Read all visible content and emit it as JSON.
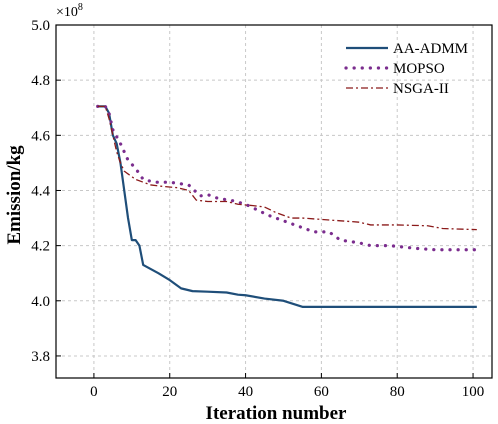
{
  "chart_data": {
    "type": "line",
    "xlabel": "Iteration number",
    "ylabel": "Emission/kg",
    "y_multiplier_base": "×10",
    "y_multiplier_exp": "8",
    "xlim": [
      -10,
      105
    ],
    "ylim": [
      3.72,
      5.0
    ],
    "xticks": [
      0,
      20,
      40,
      60,
      80,
      100
    ],
    "yticks": [
      3.8,
      4.0,
      4.2,
      4.4,
      4.6,
      4.8,
      5.0
    ],
    "ytick_labels": [
      "3.8",
      "4.0",
      "4.2",
      "4.4",
      "4.6",
      "4.8",
      "5.0"
    ],
    "grid": true,
    "legend_position": "top-right",
    "series": [
      {
        "name": "AA-ADMM",
        "color": "#1f4e79",
        "style": "solid",
        "x": [
          1,
          3,
          4,
          5,
          6,
          7,
          8,
          9,
          10,
          11,
          12,
          13,
          15,
          17,
          20,
          23,
          26,
          30,
          35,
          38,
          40,
          45,
          50,
          55,
          60,
          70,
          80,
          90,
          101
        ],
        "y": [
          4.705,
          4.705,
          4.68,
          4.6,
          4.57,
          4.5,
          4.4,
          4.3,
          4.22,
          4.22,
          4.2,
          4.13,
          4.115,
          4.1,
          4.075,
          4.045,
          4.035,
          4.033,
          4.03,
          4.022,
          4.02,
          4.008,
          4.0,
          3.978,
          3.978,
          3.978,
          3.978,
          3.978,
          3.978
        ]
      },
      {
        "name": "MOPSO",
        "color": "#7b2d8e",
        "style": "dotted",
        "x": [
          1,
          3,
          4,
          5,
          7,
          9,
          11,
          13,
          16,
          20,
          25,
          28,
          30,
          33,
          36,
          40,
          43,
          46,
          50,
          53,
          56,
          58,
          62,
          65,
          70,
          73,
          78,
          85,
          90,
          95,
          101
        ],
        "y": [
          4.705,
          4.705,
          4.68,
          4.62,
          4.57,
          4.51,
          4.48,
          4.44,
          4.43,
          4.43,
          4.42,
          4.38,
          4.385,
          4.37,
          4.365,
          4.35,
          4.33,
          4.31,
          4.29,
          4.275,
          4.26,
          4.25,
          4.25,
          4.22,
          4.21,
          4.2,
          4.2,
          4.19,
          4.185,
          4.185,
          4.185
        ]
      },
      {
        "name": "NSGA-II",
        "color": "#8b1a1a",
        "style": "dashdot",
        "x": [
          1,
          3,
          4,
          5,
          6,
          7,
          8,
          9,
          11,
          13,
          15,
          18,
          22,
          25,
          27,
          30,
          35,
          38,
          42,
          45,
          48,
          52,
          55,
          60,
          65,
          70,
          73,
          80,
          88,
          92,
          101
        ],
        "y": [
          4.705,
          4.705,
          4.66,
          4.6,
          4.54,
          4.5,
          4.47,
          4.46,
          4.44,
          4.43,
          4.42,
          4.415,
          4.41,
          4.4,
          4.365,
          4.36,
          4.36,
          4.35,
          4.345,
          4.34,
          4.32,
          4.3,
          4.3,
          4.295,
          4.29,
          4.285,
          4.275,
          4.275,
          4.272,
          4.262,
          4.258
        ]
      }
    ]
  }
}
